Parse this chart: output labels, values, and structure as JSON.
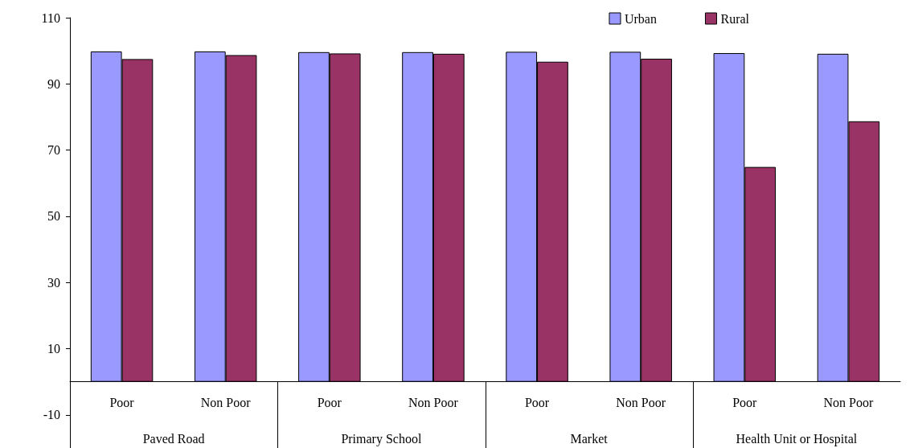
{
  "chart_data": {
    "type": "bar",
    "categories": [
      "Poor",
      "Non Poor",
      "Poor",
      "Non Poor",
      "Poor",
      "Non Poor",
      "Poor",
      "Non Poor"
    ],
    "series": [
      {
        "name": "Urban",
        "color": "#9999ff",
        "values": [
          99.8,
          99.8,
          99.6,
          99.6,
          99.7,
          99.7,
          99.3,
          99.1
        ]
      },
      {
        "name": "Rural",
        "color": "#993366",
        "values": [
          97.5,
          98.7,
          99.2,
          99.1,
          96.7,
          97.6,
          64.9,
          78.7
        ]
      }
    ],
    "annotations": [
      "Paved Road",
      "Primary School",
      "Market",
      "Health Unit or Hospital"
    ],
    "ylim": [
      -20,
      110
    ],
    "yticks": [
      -10,
      10,
      30,
      50,
      70,
      90,
      110
    ],
    "grid": false,
    "legend": "top right"
  }
}
